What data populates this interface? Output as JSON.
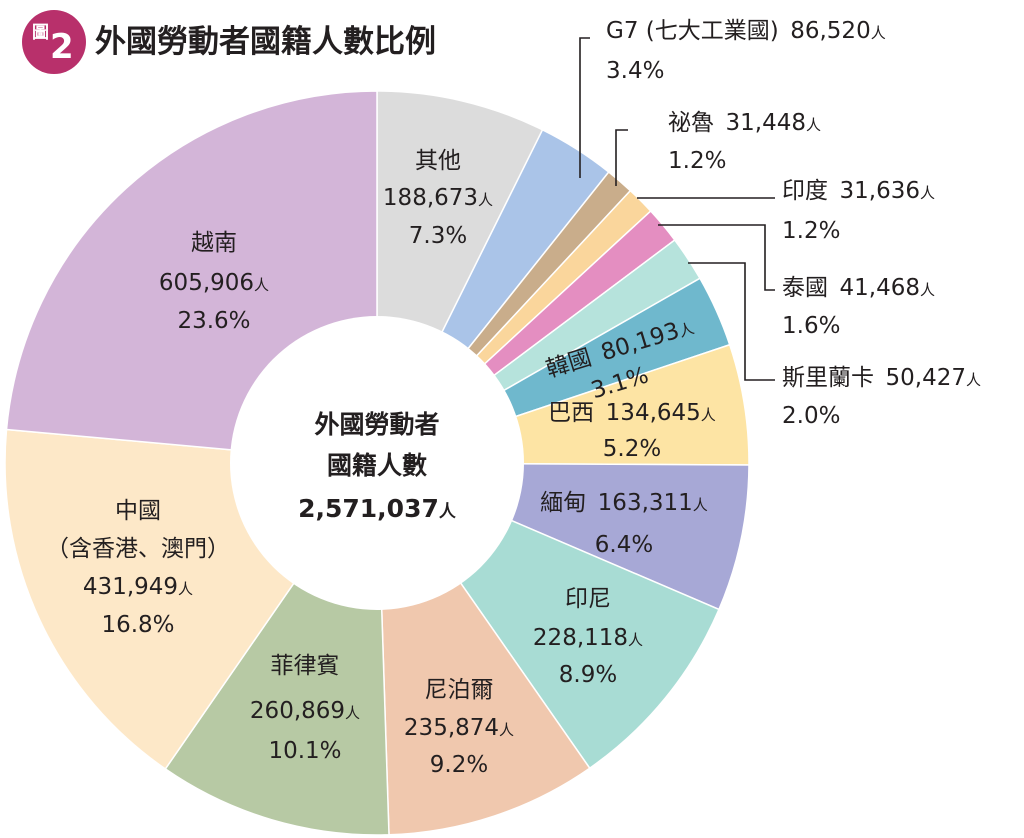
{
  "header": {
    "badge_text": "圖",
    "badge_number": "2",
    "title": "外國勞動者國籍人數比例"
  },
  "center": {
    "line1": "外國勞動者",
    "line2": "國籍人數",
    "total": "2,571,037",
    "unit": "人"
  },
  "chart_data": {
    "type": "pie",
    "title": "外國勞動者國籍人數比例",
    "total": 2571037,
    "unit": "人",
    "slices": [
      {
        "label": "其他",
        "value": 188673,
        "value_text": "188,673",
        "percent": 7.3,
        "percent_text": "7.3%",
        "color": "#dcdcdc"
      },
      {
        "label": "G7 (七大工業國)",
        "value": 86520,
        "value_text": "86,520",
        "percent": 3.4,
        "percent_text": "3.4%",
        "color": "#aac4e8"
      },
      {
        "label": "祕魯",
        "value": 31448,
        "value_text": "31,448",
        "percent": 1.2,
        "percent_text": "1.2%",
        "color": "#c9ad8b"
      },
      {
        "label": "印度",
        "value": 31636,
        "value_text": "31,636",
        "percent": 1.2,
        "percent_text": "1.2%",
        "color": "#fad69c"
      },
      {
        "label": "泰國",
        "value": 41468,
        "value_text": "41,468",
        "percent": 1.6,
        "percent_text": "1.6%",
        "color": "#e48ec1"
      },
      {
        "label": "斯里蘭卡",
        "value": 50427,
        "value_text": "50,427",
        "percent": 2.0,
        "percent_text": "2.0%",
        "color": "#b6e3dc"
      },
      {
        "label": "韓國",
        "value": 80193,
        "value_text": "80,193",
        "percent": 3.1,
        "percent_text": "3.1%",
        "color": "#6fb8cd"
      },
      {
        "label": "巴西",
        "value": 134645,
        "value_text": "134,645",
        "percent": 5.2,
        "percent_text": "5.2%",
        "color": "#fde4a4"
      },
      {
        "label": "緬甸",
        "value": 163311,
        "value_text": "163,311",
        "percent": 6.4,
        "percent_text": "6.4%",
        "color": "#a7a8d6"
      },
      {
        "label": "印尼",
        "value": 228118,
        "value_text": "228,118",
        "percent": 8.9,
        "percent_text": "8.9%",
        "color": "#a8dcd4"
      },
      {
        "label": "尼泊爾",
        "value": 235874,
        "value_text": "235,874",
        "percent": 9.2,
        "percent_text": "9.2%",
        "color": "#f0c8ae"
      },
      {
        "label": "菲律賓",
        "value": 260869,
        "value_text": "260,869",
        "percent": 10.1,
        "percent_text": "10.1%",
        "color": "#b7c9a4"
      },
      {
        "label": "中國",
        "sublabel": "（含香港、澳門）",
        "value": 431949,
        "value_text": "431,949",
        "percent": 16.8,
        "percent_text": "16.8%",
        "color": "#fde8c8"
      },
      {
        "label": "越南",
        "value": 605906,
        "value_text": "605,906",
        "percent": 23.6,
        "percent_text": "23.6%",
        "color": "#d3b5d8"
      }
    ]
  }
}
